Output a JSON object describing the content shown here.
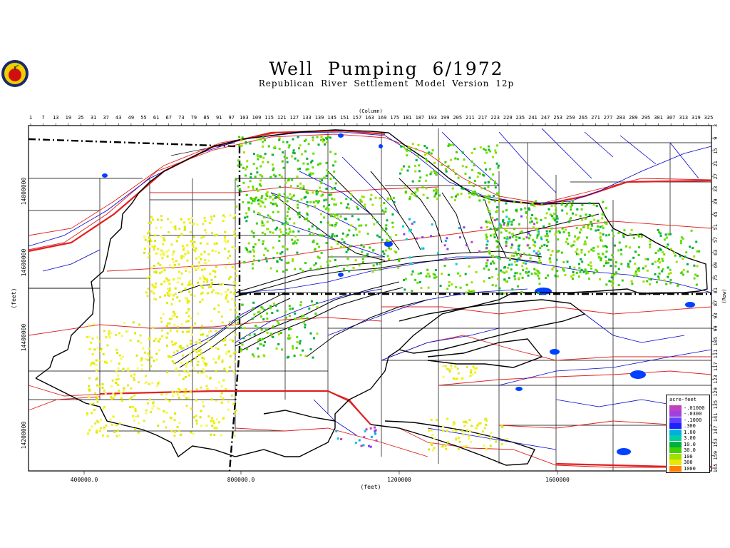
{
  "title": "Well Pumping   6/1972",
  "subtitle": "Republican River Settlement Model Version 12p",
  "logo_icon": "apple-seal-icon",
  "axes": {
    "column_label": "(Column)",
    "row_label": "(Row)",
    "x_feet_label": "(feet)",
    "y_feet_label": "(feet)",
    "column_ticks": [
      "1",
      "7",
      "13",
      "19",
      "25",
      "31",
      "37",
      "43",
      "49",
      "55",
      "61",
      "67",
      "73",
      "79",
      "85",
      "91",
      "97",
      "103",
      "109",
      "115",
      "121",
      "127",
      "133",
      "139",
      "145",
      "151",
      "157",
      "163",
      "169",
      "175",
      "181",
      "187",
      "193",
      "199",
      "205",
      "211",
      "217",
      "223",
      "229",
      "235",
      "241",
      "247",
      "253",
      "259",
      "265",
      "271",
      "277",
      "283",
      "289",
      "295",
      "301",
      "307",
      "313",
      "319",
      "325"
    ],
    "row_ticks": [
      "3",
      "9",
      "15",
      "21",
      "27",
      "33",
      "39",
      "45",
      "51",
      "57",
      "63",
      "69",
      "75",
      "81",
      "87",
      "93",
      "99",
      "105",
      "111",
      "117",
      "123",
      "129",
      "135",
      "141",
      "147",
      "153",
      "159",
      "165"
    ],
    "x_feet_ticks": [
      "400000.0",
      "800000.0",
      "1200000",
      "1600000"
    ],
    "y_feet_ticks": [
      "14800000",
      "14600000",
      "14400000",
      "14200000"
    ]
  },
  "legend": {
    "title": "acre-feet",
    "items": [
      {
        "label": "-.01000",
        "color": "#c040c0"
      },
      {
        "label": "-.0300",
        "color": "#a040e0"
      },
      {
        "label": "-.1000",
        "color": "#6040ff"
      },
      {
        "label": ".300",
        "color": "#2020ff"
      },
      {
        "label": "1.00",
        "color": "#00b0e0"
      },
      {
        "label": "3.00",
        "color": "#00d0a0"
      },
      {
        "label": "10.0",
        "color": "#00b040"
      },
      {
        "label": "30.0",
        "color": "#40d000"
      },
      {
        "label": "100",
        "color": "#a0e000"
      },
      {
        "label": "300",
        "color": "#e8e800"
      },
      {
        "label": "1000",
        "color": "#ff8000"
      }
    ]
  },
  "map_colors": {
    "roads": "#e02020",
    "rivers": "#0000d0",
    "boundaries": "#000000",
    "water_bodies": "#0040ff"
  }
}
